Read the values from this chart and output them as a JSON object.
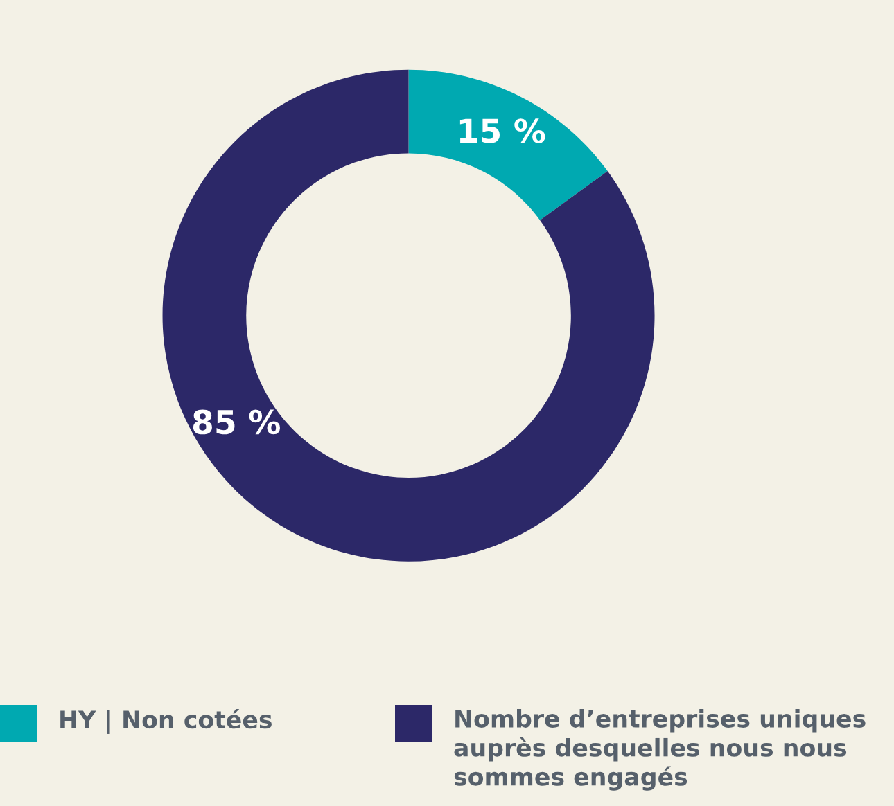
{
  "chart_data": {
    "type": "donut",
    "categories": [
      "HY | Non cotées",
      "Nombre d’entreprises uniques auprès desquelles nous nous sommes engagés"
    ],
    "values": [
      15,
      85
    ],
    "colors": [
      "#00a9b1",
      "#2c2868"
    ],
    "value_labels": [
      "15 %",
      "85 %"
    ],
    "legend": "bottom"
  }
}
